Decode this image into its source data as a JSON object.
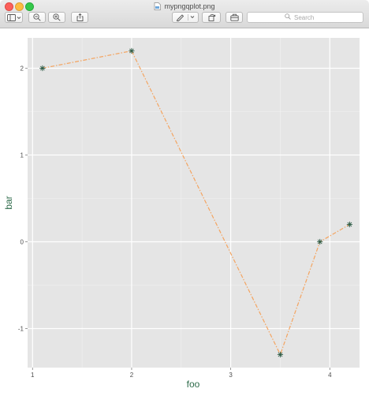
{
  "window": {
    "title": "mypngqplot.png",
    "file_icon": "image-file-icon"
  },
  "toolbar": {
    "sidebar_icon": "sidebar-toggle-icon",
    "zoom_out_icon": "zoom-out-icon",
    "zoom_in_icon": "zoom-in-icon",
    "share_icon": "share-icon",
    "markup_icon": "pen-markup-icon",
    "rotate_icon": "rotate-icon",
    "toolbox_icon": "toolbox-icon",
    "search_placeholder": "Search"
  },
  "chart_data": {
    "type": "line",
    "title": "",
    "xlabel": "foo",
    "ylabel": "bar",
    "xlim": [
      0.95,
      4.3
    ],
    "ylim": [
      -1.45,
      2.35
    ],
    "x_ticks": [
      1,
      2,
      3,
      4
    ],
    "y_ticks": [
      -1,
      0,
      1,
      2
    ],
    "x_tick_labels": [
      "1",
      "2",
      "3",
      "4"
    ],
    "y_tick_labels": [
      "-1",
      "0",
      "1",
      "2"
    ],
    "grid": true,
    "background": "#e5e5e5",
    "line_color": "#f4a460",
    "line_style": "dashdot",
    "marker": "asterisk",
    "marker_color": "#2e5c46",
    "axis_label_color": "#2e6b4a",
    "series": [
      {
        "x": [
          1.1,
          2.0,
          3.5,
          3.9,
          4.2
        ],
        "y": [
          2.0,
          2.2,
          -1.3,
          0.0,
          0.2
        ]
      }
    ]
  }
}
